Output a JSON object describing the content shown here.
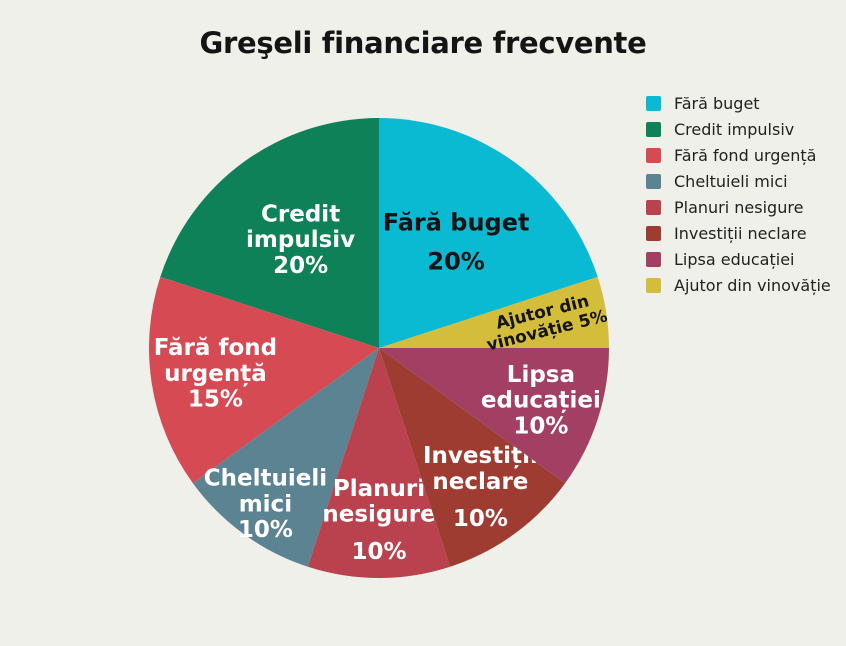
{
  "title": "Greşeli financiare frecvente",
  "colors": {
    "background": "#EFF0EA",
    "title_text": "#141414",
    "legend_text": "#222222"
  },
  "chart_data": {
    "type": "pie",
    "title": "Greşeli financiare frecvente",
    "unit": "%",
    "legend_position": "right",
    "slices": [
      {
        "key": "fara-buget",
        "label": "Fără buget",
        "value": 20,
        "pct_label": "20%",
        "color": "#0ABAD3",
        "label_color": "#141414",
        "label_lines": [
          "Fără buget"
        ]
      },
      {
        "key": "credit-impulsiv",
        "label": "Credit impulsiv",
        "value": 20,
        "pct_label": "20%",
        "color": "#0E8158",
        "label_color": "#FFFFFF",
        "label_lines": [
          "Credit",
          "impulsiv"
        ]
      },
      {
        "key": "fara-fond-urgenta",
        "label": "Fără fond urgență",
        "value": 15,
        "pct_label": "15%",
        "color": "#D64A53",
        "label_color": "#FFFFFF",
        "label_lines": [
          "Fără fond",
          "urgență"
        ]
      },
      {
        "key": "cheltuieli-mici",
        "label": "Cheltuieli mici",
        "value": 10,
        "pct_label": "10%",
        "color": "#5B8392",
        "label_color": "#FFFFFF",
        "label_lines": [
          "Cheltuieli",
          "mici"
        ]
      },
      {
        "key": "planuri-nesigure",
        "label": "Planuri nesigure",
        "value": 10,
        "pct_label": "10%",
        "color": "#B9424E",
        "label_color": "#FFFFFF",
        "label_lines": [
          "Planuri",
          "nesigure"
        ]
      },
      {
        "key": "investitii-neclare",
        "label": "Investiții neclare",
        "value": 10,
        "pct_label": "10%",
        "color": "#9E3C31",
        "label_color": "#FFFFFF",
        "label_lines": [
          "Investiții",
          "neclare"
        ]
      },
      {
        "key": "lipsa-educatiei",
        "label": "Lipsa educației",
        "value": 10,
        "pct_label": "10%",
        "color": "#A33F62",
        "label_color": "#FFFFFF",
        "label_lines": [
          "Lipsa",
          "educației"
        ]
      },
      {
        "key": "ajutor-din-vinovatie",
        "label": "Ajutor din vinovăție",
        "value": 5,
        "pct_label": "",
        "color": "#D5BD3C",
        "label_color": "#141414",
        "label_lines": [
          "Ajutor din",
          "vinovăție 5%"
        ]
      }
    ],
    "layout_hints": {
      "center": [
        379,
        348
      ],
      "radius": 230,
      "start_angle_deg": 72,
      "direction": "ccw",
      "label_font_px": {
        "default": 23,
        "fara-buget": 24,
        "ajutor-din-vinovatie": 17
      },
      "label_radius_frac": {
        "fara-buget": 0.57,
        "credit-impulsiv": 0.58,
        "fara-fond-urgenta": 0.72,
        "cheltuieli-mici": 0.84,
        "planuri-nesigure": 0.75,
        "investitii-neclare": 0.75,
        "lipsa-educatiei": 0.74,
        "ajutor-din-vinovatie": 0.73
      },
      "label_rotation_deg": {
        "ajutor-din-vinovatie": -14
      },
      "pct_gap_extra": [
        "fara-buget",
        "planuri-nesigure",
        "investitii-neclare"
      ]
    }
  }
}
